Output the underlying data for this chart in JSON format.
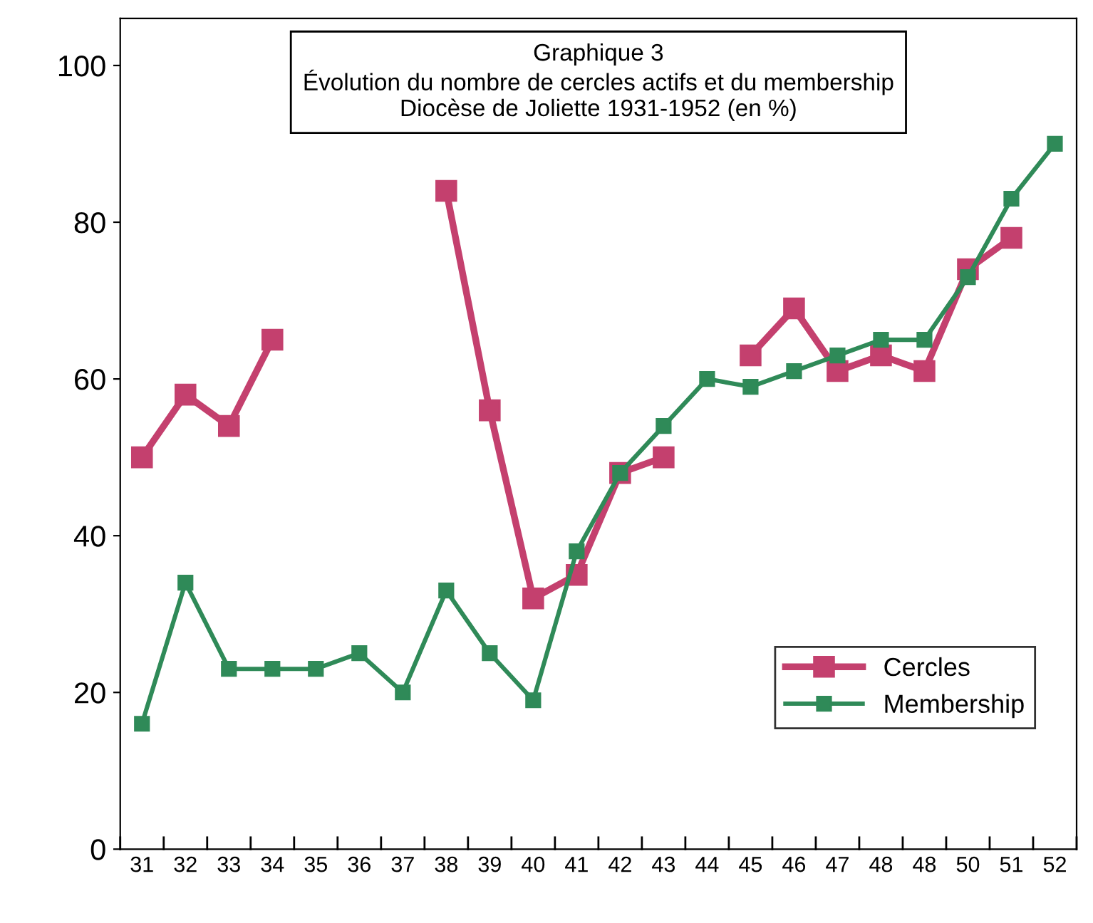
{
  "chart_data": {
    "type": "line",
    "title": "Graphique 3\nÉvolution du nombre de cercles actifs et du membership\nDiocèse de Joliette 1931-1952 (en %)",
    "categories": [
      "31",
      "32",
      "33",
      "34",
      "35",
      "36",
      "37",
      "38",
      "39",
      "40",
      "41",
      "42",
      "43",
      "44",
      "45",
      "46",
      "47",
      "48",
      "48",
      "50",
      "51",
      "52"
    ],
    "series": [
      {
        "name": "Cercles",
        "color": "#c4406e",
        "values": [
          50,
          58,
          54,
          65,
          null,
          null,
          null,
          84,
          56,
          32,
          35,
          48,
          50,
          null,
          63,
          69,
          61,
          63,
          61,
          74,
          78,
          null
        ]
      },
      {
        "name": "Membership",
        "color": "#2f8a58",
        "values": [
          16,
          34,
          23,
          23,
          23,
          25,
          20,
          33,
          25,
          19,
          38,
          48,
          54,
          60,
          59,
          61,
          63,
          65,
          65,
          73,
          83,
          90
        ]
      }
    ],
    "ylim": [
      0,
      106
    ],
    "yticks": [
      0,
      20,
      40,
      60,
      80,
      100
    ],
    "marker": "square",
    "line_style": "solid",
    "legend": "bottom right",
    "grid": false
  }
}
